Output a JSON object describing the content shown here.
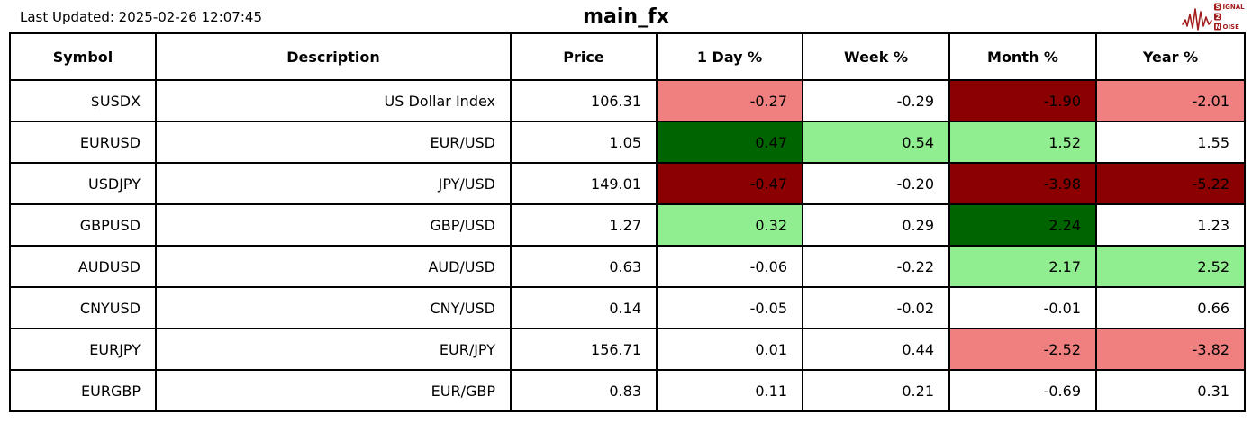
{
  "page": {
    "last_updated": "Last Updated: 2025-02-26 12:07:45",
    "title": "main_fx"
  },
  "logo": {
    "color": "#a21d1d",
    "line1_boxed": "S",
    "line1_rest": "IGNAL",
    "line2_boxed": "2",
    "line3_boxed": "N",
    "line3_rest": "OISE"
  },
  "colors": {
    "pos_strong": "#006400",
    "pos_weak": "#90EE90",
    "neg_strong": "#8B0000",
    "neg_weak": "#F08080",
    "neutral": "#FFFFFF"
  },
  "chart_data": {
    "type": "table",
    "title": "main_fx",
    "last_updated": "2025-02-26 12:07:45",
    "columns": [
      "Symbol",
      "Description",
      "Price",
      "1 Day %",
      "Week %",
      "Month %",
      "Year %"
    ],
    "color_legend": {
      "pos_strong": "strong gain (dark green)",
      "pos_weak": "moderate gain (light green)",
      "neg_strong": "strong loss (dark red)",
      "neg_weak": "moderate loss (light red)",
      "neutral": "small change (white)"
    },
    "rows": [
      {
        "symbol": "$USDX",
        "description": "US Dollar Index",
        "price": "106.31",
        "pct": [
          {
            "v": "-0.27",
            "bg": "neg_weak"
          },
          {
            "v": "-0.29",
            "bg": "neutral"
          },
          {
            "v": "-1.90",
            "bg": "neg_strong"
          },
          {
            "v": "-2.01",
            "bg": "neg_weak"
          }
        ]
      },
      {
        "symbol": "EURUSD",
        "description": "EUR/USD",
        "price": "1.05",
        "pct": [
          {
            "v": "0.47",
            "bg": "pos_strong"
          },
          {
            "v": "0.54",
            "bg": "pos_weak"
          },
          {
            "v": "1.52",
            "bg": "pos_weak"
          },
          {
            "v": "1.55",
            "bg": "neutral"
          }
        ]
      },
      {
        "symbol": "USDJPY",
        "description": "JPY/USD",
        "price": "149.01",
        "pct": [
          {
            "v": "-0.47",
            "bg": "neg_strong"
          },
          {
            "v": "-0.20",
            "bg": "neutral"
          },
          {
            "v": "-3.98",
            "bg": "neg_strong"
          },
          {
            "v": "-5.22",
            "bg": "neg_strong"
          }
        ]
      },
      {
        "symbol": "GBPUSD",
        "description": "GBP/USD",
        "price": "1.27",
        "pct": [
          {
            "v": "0.32",
            "bg": "pos_weak"
          },
          {
            "v": "0.29",
            "bg": "neutral"
          },
          {
            "v": "2.24",
            "bg": "pos_strong"
          },
          {
            "v": "1.23",
            "bg": "neutral"
          }
        ]
      },
      {
        "symbol": "AUDUSD",
        "description": "AUD/USD",
        "price": "0.63",
        "pct": [
          {
            "v": "-0.06",
            "bg": "neutral"
          },
          {
            "v": "-0.22",
            "bg": "neutral"
          },
          {
            "v": "2.17",
            "bg": "pos_weak"
          },
          {
            "v": "2.52",
            "bg": "pos_weak"
          }
        ]
      },
      {
        "symbol": "CNYUSD",
        "description": "CNY/USD",
        "price": "0.14",
        "pct": [
          {
            "v": "-0.05",
            "bg": "neutral"
          },
          {
            "v": "-0.02",
            "bg": "neutral"
          },
          {
            "v": "-0.01",
            "bg": "neutral"
          },
          {
            "v": "0.66",
            "bg": "neutral"
          }
        ]
      },
      {
        "symbol": "EURJPY",
        "description": "EUR/JPY",
        "price": "156.71",
        "pct": [
          {
            "v": "0.01",
            "bg": "neutral"
          },
          {
            "v": "0.44",
            "bg": "neutral"
          },
          {
            "v": "-2.52",
            "bg": "neg_weak"
          },
          {
            "v": "-3.82",
            "bg": "neg_weak"
          }
        ]
      },
      {
        "symbol": "EURGBP",
        "description": "EUR/GBP",
        "price": "0.83",
        "pct": [
          {
            "v": "0.11",
            "bg": "neutral"
          },
          {
            "v": "0.21",
            "bg": "neutral"
          },
          {
            "v": "-0.69",
            "bg": "neutral"
          },
          {
            "v": "0.31",
            "bg": "neutral"
          }
        ]
      }
    ]
  }
}
